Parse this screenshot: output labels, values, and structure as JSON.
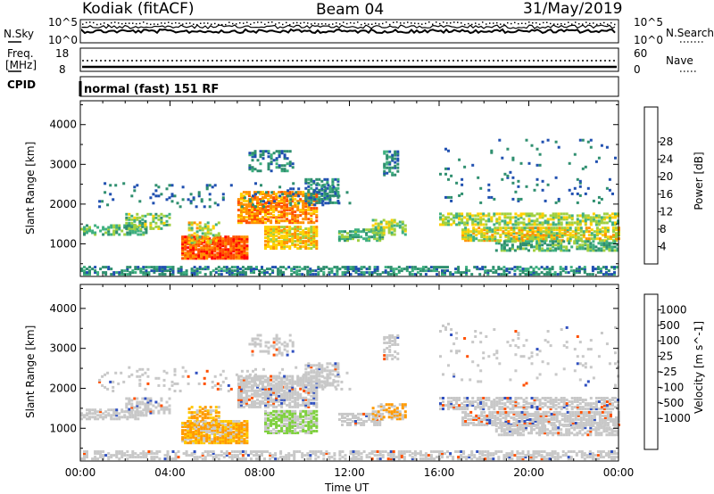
{
  "header": {
    "station": "Kodiak (fitACF)",
    "beam": "Beam 04",
    "date": "31/May/2019"
  },
  "strip_panels": {
    "noise": {
      "left_label": "N.Sky",
      "right_label": "N.Search",
      "left_ticks": [
        "10^5",
        "10^0"
      ],
      "right_ticks": [
        "10^5",
        "10^0"
      ]
    },
    "freq": {
      "left_label_1": "Freq.",
      "left_label_2": "[MHz]",
      "left_ticks": [
        "18",
        "8"
      ],
      "right_label": "Nave",
      "right_ticks": [
        "60",
        "0"
      ]
    },
    "cpid": {
      "left_label": "CPID",
      "text": "normal (fast) 151 RF"
    }
  },
  "colors": {
    "power_scale": [
      "#0000ff",
      "#2050b0",
      "#2f8f6f",
      "#3fb080",
      "#a0d040",
      "#ffd000",
      "#ff9000",
      "#ff5000",
      "#ff0000"
    ],
    "velocity_scale": [
      "#ff0000",
      "#ff5000",
      "#ff9a00",
      "#ffc800",
      "#c8c8c8",
      "#c8c8c8",
      "#80d040",
      "#3f9f5f",
      "#3050c0",
      "#0030e0"
    ]
  },
  "chart_data": [
    {
      "type": "heatmap",
      "quantity": "power",
      "xlabel": "",
      "ylabel": "Slant Range [km]",
      "x_ticks": [
        "00:00",
        "04:00",
        "08:00",
        "12:00",
        "16:00",
        "20:00",
        "00:00"
      ],
      "y_ticks": [
        "1000",
        "2000",
        "3000",
        "4000"
      ],
      "xlim": [
        0,
        24
      ],
      "ylim": [
        180,
        4600
      ],
      "colorbar": {
        "label": "Power [dB]",
        "ticks": [
          "4",
          "8",
          "12",
          "16",
          "20",
          "24",
          "28"
        ],
        "range": [
          0,
          32
        ]
      }
    },
    {
      "type": "heatmap",
      "quantity": "velocity",
      "xlabel": "Time UT",
      "ylabel": "Slant Range [km]",
      "x_ticks": [
        "00:00",
        "04:00",
        "08:00",
        "12:00",
        "16:00",
        "20:00",
        "00:00"
      ],
      "y_ticks": [
        "1000",
        "2000",
        "3000",
        "4000"
      ],
      "xlim": [
        0,
        24
      ],
      "ylim": [
        180,
        4600
      ],
      "colorbar": {
        "label": "Velocity [m s^-1]",
        "ticks": [
          "1000",
          "500",
          "100",
          "25",
          "-25",
          "-100",
          "-500",
          "-1000"
        ]
      }
    }
  ]
}
